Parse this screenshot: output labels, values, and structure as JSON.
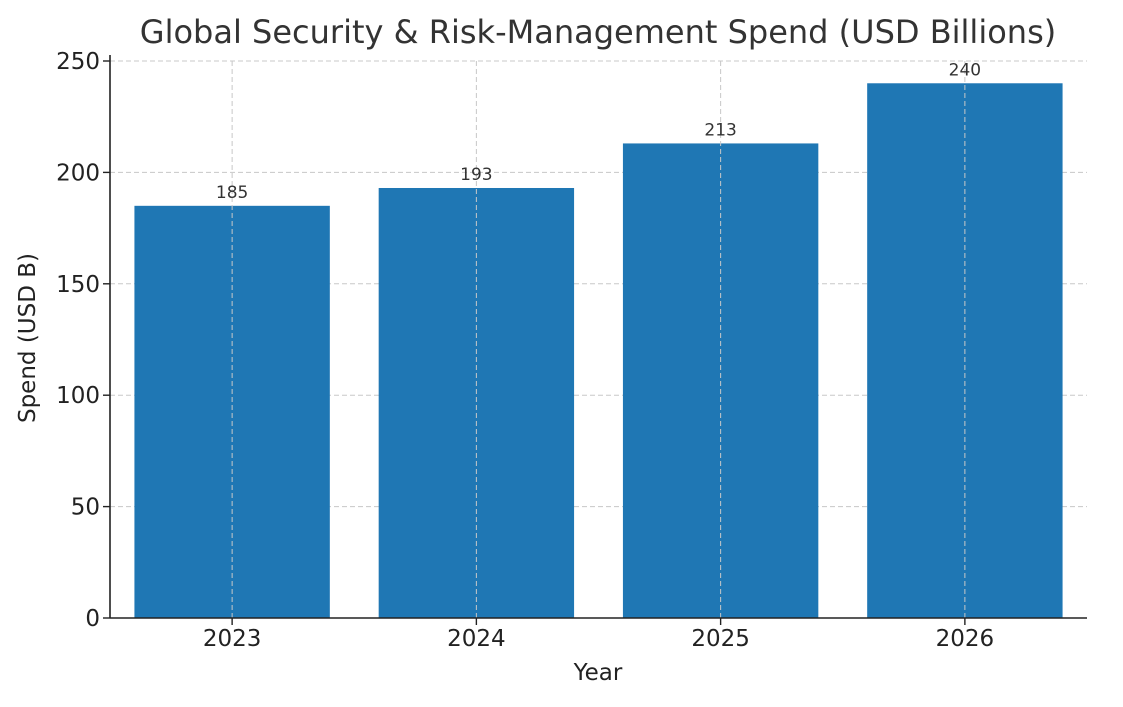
{
  "chart_data": {
    "type": "bar",
    "title": "Global Security & Risk-Management Spend (USD Billions)",
    "xlabel": "Year",
    "ylabel": "Spend (USD B)",
    "categories": [
      "2023",
      "2024",
      "2025",
      "2026"
    ],
    "values": [
      185,
      193,
      213,
      240
    ],
    "data_labels": [
      "185",
      "193",
      "213",
      "240"
    ],
    "ylim": [
      0,
      250
    ],
    "yticks": [
      0,
      50,
      100,
      150,
      200,
      250
    ],
    "ytick_labels": [
      "0",
      "50",
      "100",
      "150",
      "200",
      "250"
    ],
    "grid": true,
    "bar_color": "#1f77b4"
  }
}
